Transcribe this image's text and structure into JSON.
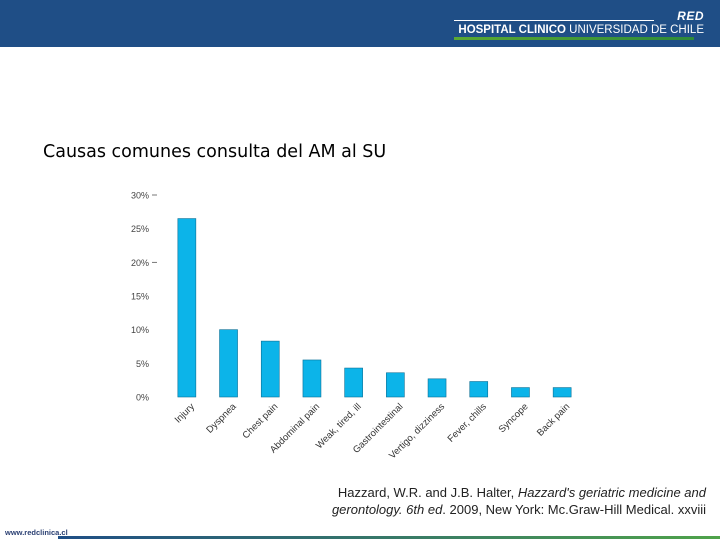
{
  "header": {
    "logo_red": "RED",
    "logo_bold": "HOSPITAL CLINICO",
    "logo_rest": "UNIVERSIDAD DE CHILE"
  },
  "slide": {
    "title": "Causas comunes consulta del AM al SU"
  },
  "chart_data": {
    "type": "bar",
    "categories": [
      "Injury",
      "Dyspnea",
      "Chest pain",
      "Abdominal pain",
      "Weak, tired, ill",
      "Gastrointestinal",
      "Vertigo, dizziness",
      "Fever, chills",
      "Syncope",
      "Back pain"
    ],
    "values": [
      26.5,
      10,
      8.3,
      5.5,
      4.3,
      3.6,
      2.7,
      2.3,
      1.4,
      1.4
    ],
    "ylim": [
      0,
      30
    ],
    "yticks": [
      "0%",
      "5%",
      "10%",
      "15%",
      "20%",
      "25%",
      "30%"
    ],
    "bar_color": "#0cb4e9",
    "grid": false
  },
  "citation": {
    "part1": "Hazzard, W.R. and J.B. Halter, ",
    "italic": "Hazzard's geriatric medicine and gerontology. 6th ed",
    "part2": ". 2009, New York: Mc.Graw-Hill Medical. xxviii"
  },
  "footer": {
    "url": "www.redclinica.cl"
  }
}
